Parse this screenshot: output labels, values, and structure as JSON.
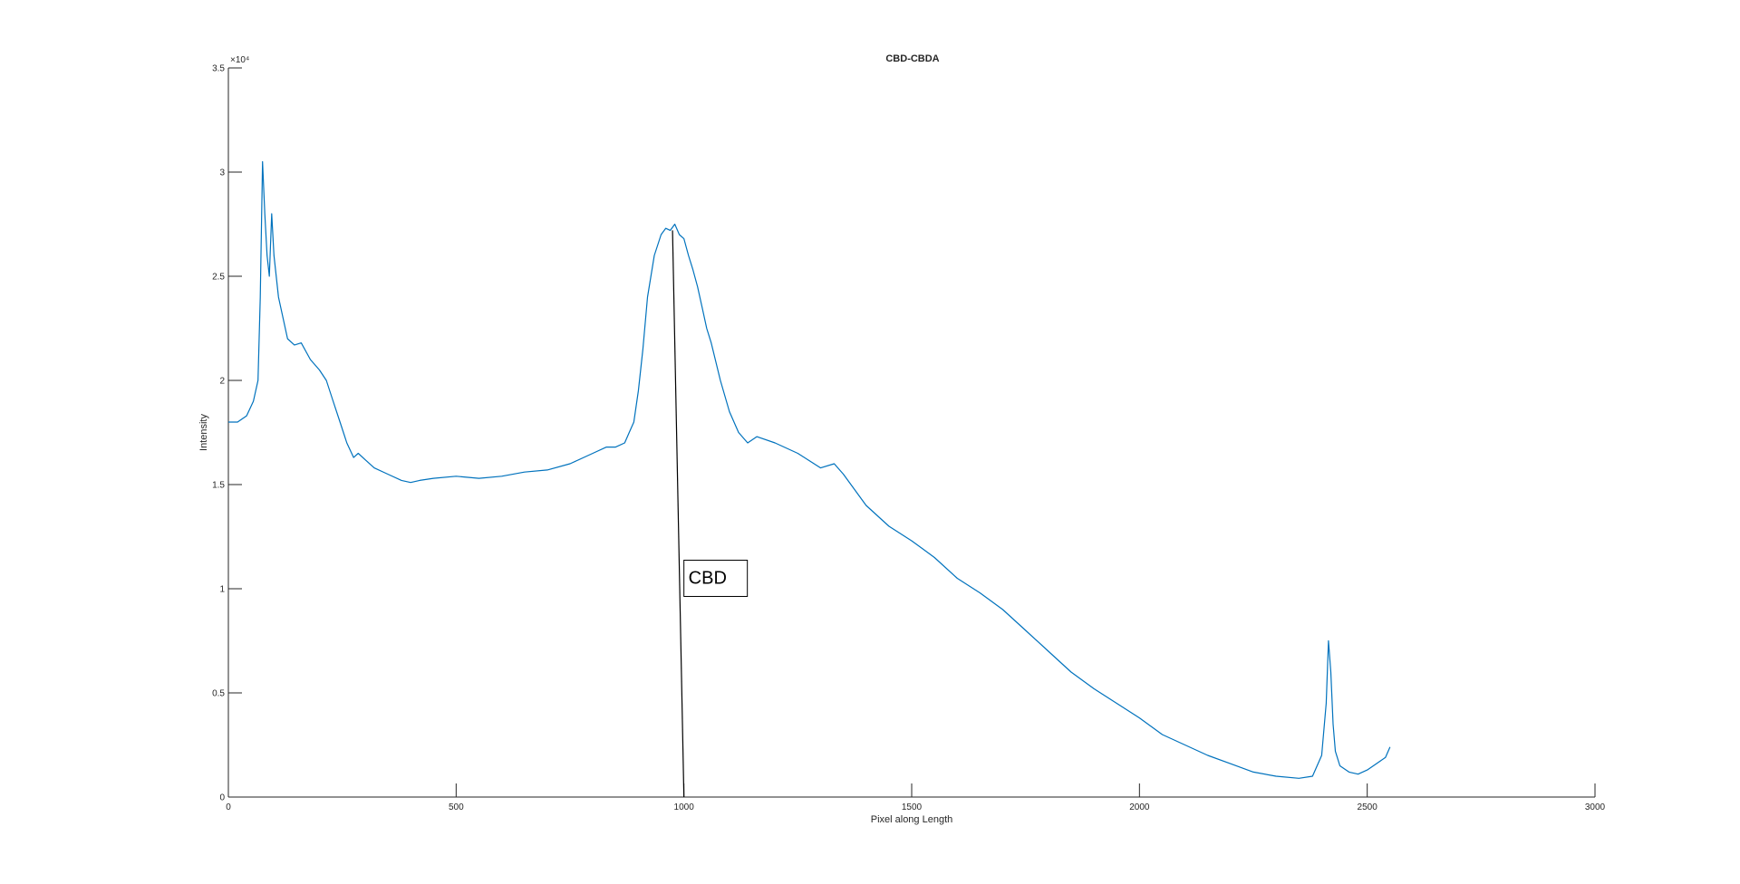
{
  "chart_data": {
    "type": "line",
    "title": "CBD-CBDA",
    "xlabel": "Pixel along Length",
    "ylabel": "Intensity",
    "xlim": [
      0,
      3000
    ],
    "ylim": [
      0,
      35000
    ],
    "xticks": [
      0,
      500,
      1000,
      1500,
      2000,
      2500,
      3000
    ],
    "yticks": [
      0,
      5000,
      10000,
      15000,
      20000,
      25000,
      30000,
      35000
    ],
    "xtick_labels": [
      "0",
      "500",
      "1000",
      "1500",
      "2000",
      "2500",
      "3000"
    ],
    "ytick_labels": [
      "0",
      "0.5",
      "1",
      "1.5",
      "2",
      "2.5",
      "3",
      "3.5"
    ],
    "y_exponent_label": "×10⁴",
    "grid": false,
    "line_color": "#0072BD",
    "series": [
      {
        "x": [
          0,
          20,
          40,
          55,
          65,
          70,
          75,
          80,
          85,
          90,
          95,
          100,
          110,
          120,
          130,
          145,
          160,
          180,
          200,
          215,
          230,
          245,
          260,
          275,
          285,
          300,
          320,
          350,
          380,
          400,
          420,
          450,
          500,
          550,
          600,
          650,
          700,
          750,
          800,
          830,
          850,
          870,
          880,
          890,
          900,
          910,
          920,
          935,
          950,
          960,
          970,
          980,
          990,
          1000,
          1010,
          1020,
          1030,
          1040,
          1050,
          1060,
          1080,
          1100,
          1120,
          1140,
          1160,
          1200,
          1250,
          1300,
          1330,
          1350,
          1400,
          1450,
          1500,
          1550,
          1600,
          1650,
          1700,
          1750,
          1800,
          1850,
          1900,
          1950,
          2000,
          2050,
          2100,
          2150,
          2200,
          2250,
          2300,
          2350,
          2380,
          2400,
          2410,
          2415,
          2420,
          2425,
          2430,
          2440,
          2460,
          2480,
          2500,
          2520,
          2540,
          2550
        ],
        "y": [
          18000,
          18000,
          18300,
          19000,
          20000,
          24000,
          30500,
          28000,
          26000,
          25000,
          28000,
          26000,
          24000,
          23000,
          22000,
          21700,
          21800,
          21000,
          20500,
          20000,
          19000,
          18000,
          17000,
          16300,
          16500,
          16200,
          15800,
          15500,
          15200,
          15100,
          15200,
          15300,
          15400,
          15300,
          15400,
          15600,
          15700,
          16000,
          16500,
          16800,
          16800,
          17000,
          17500,
          18000,
          19500,
          21500,
          24000,
          26000,
          27000,
          27300,
          27200,
          27500,
          27000,
          26800,
          26000,
          25300,
          24500,
          23500,
          22500,
          21800,
          20000,
          18500,
          17500,
          17000,
          17300,
          17000,
          16500,
          15800,
          16000,
          15500,
          14000,
          13000,
          12300,
          11500,
          10500,
          9800,
          9000,
          8000,
          7000,
          6000,
          5200,
          4500,
          3800,
          3000,
          2500,
          2000,
          1600,
          1200,
          1000,
          900,
          1000,
          2000,
          4500,
          7500,
          6000,
          3500,
          2200,
          1500,
          1200,
          1100,
          1300,
          1600,
          1900,
          2400
        ]
      }
    ],
    "annotation": {
      "text": "CBD",
      "arrow_from": [
        1000,
        0
      ],
      "arrow_to": [
        975,
        27200
      ],
      "box_anchor": [
        1000,
        10500
      ]
    }
  }
}
